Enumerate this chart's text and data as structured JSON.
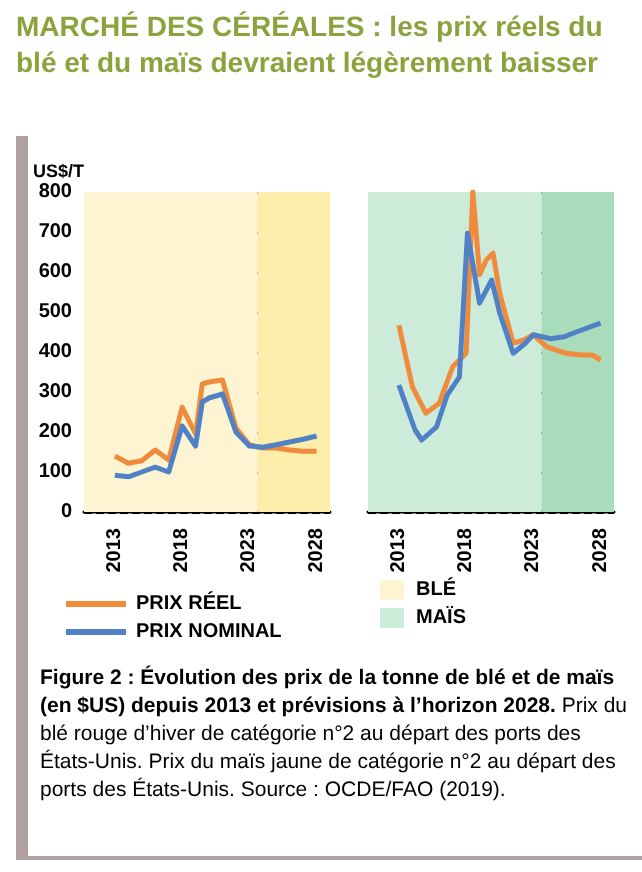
{
  "chart_data": [
    {
      "type": "line",
      "title": "MARCHÉ DES CÉRÉALES : les prix réels du blé et du maïs devraient légèrement baisser",
      "ylabel": "US$/T",
      "annotations": [
        "Figure 2 : Évolution des prix de la tonne de blé et de maïs (en $US) depuis 2013 et prévisions à l’horizon 2028.",
        "Prix du blé rouge d’hiver de catégorie n°2 au départ des ports des États-Unis. Prix du maïs jaune de catégorie n°2 au départ des ports des États-Unis. Source : OCDE/FAO (2019)."
      ],
      "xlim": [
        2010.7,
        2029
      ],
      "xticks": [
        2013,
        2018,
        2023,
        2028
      ],
      "ylim": [
        0,
        800
      ],
      "yticks": [
        0,
        100,
        200,
        300,
        400,
        500,
        600,
        700,
        800
      ],
      "grid": "y",
      "legend": "bottom",
      "marker": "none",
      "bands": [
        {
          "axis": "x",
          "from": 2010.7,
          "to": 2023.6,
          "label": "BLÉ",
          "color": "#fdf5d2"
        },
        {
          "axis": "x",
          "from": 2023.6,
          "to": 2029,
          "color": "#fcedaa"
        }
      ],
      "series": [
        {
          "name": "PRIX RÉEL",
          "color": "#f08a3c",
          "x": [
            2013,
            2014,
            2015,
            2016,
            2017,
            2018,
            2019,
            2019.5,
            2020,
            2021,
            2022,
            2023,
            2024,
            2025,
            2026,
            2027,
            2028
          ],
          "values": [
            140,
            122,
            128,
            155,
            130,
            262,
            195,
            320,
            325,
            330,
            210,
            168,
            160,
            160,
            155,
            152,
            152
          ]
        },
        {
          "name": "PRIX NOMINAL",
          "color": "#4f81c4",
          "x": [
            2013,
            2014,
            2015,
            2016,
            2017,
            2018,
            2019,
            2019.5,
            2020,
            2021,
            2022,
            2023,
            2024,
            2025,
            2026,
            2027,
            2028
          ],
          "values": [
            92,
            88,
            100,
            112,
            100,
            215,
            165,
            275,
            285,
            295,
            200,
            165,
            162,
            168,
            175,
            182,
            190
          ]
        }
      ]
    },
    {
      "type": "line",
      "tick_labels": "x",
      "xlim": [
        2010.7,
        2029
      ],
      "xticks": [
        2013,
        2018,
        2023,
        2028
      ],
      "ylim": [
        0,
        800
      ],
      "yticks": [
        0,
        100,
        200,
        300,
        400,
        500,
        600,
        700,
        800
      ],
      "grid": "y",
      "legend": "bottom",
      "marker": "none",
      "bands": [
        {
          "axis": "x",
          "from": 2010.7,
          "to": 2023.6,
          "label": "MAÏS",
          "color": "#cdebd9"
        },
        {
          "axis": "x",
          "from": 2023.6,
          "to": 2029,
          "color": "#a8dcbb"
        }
      ],
      "series": [
        {
          "name": "PRIX RÉEL",
          "color": "#f08a3c",
          "x": [
            2013,
            2014,
            2015,
            2016,
            2017,
            2018,
            2018.5,
            2019,
            2019.5,
            2020,
            2020.5,
            2021.5,
            2022.3,
            2023,
            2024,
            2025.4,
            2026.4,
            2027.4,
            2028
          ],
          "values": [
            467,
            313,
            247,
            272,
            363,
            397,
            800,
            593,
            630,
            647,
            547,
            422,
            430,
            443,
            413,
            397,
            393,
            392,
            380
          ]
        },
        {
          "name": "PRIX NOMINAL",
          "color": "#4f81c4",
          "x": [
            2013,
            2014.2,
            2014.7,
            2015.8,
            2016.6,
            2017.5,
            2018.1,
            2019,
            2019.9,
            2020.5,
            2021.5,
            2022.4,
            2023,
            2024.3,
            2025.3,
            2026.2,
            2028
          ],
          "values": [
            317,
            205,
            180,
            213,
            293,
            338,
            697,
            522,
            580,
            497,
            397,
            422,
            443,
            433,
            438,
            450,
            472
          ]
        }
      ]
    }
  ]
}
